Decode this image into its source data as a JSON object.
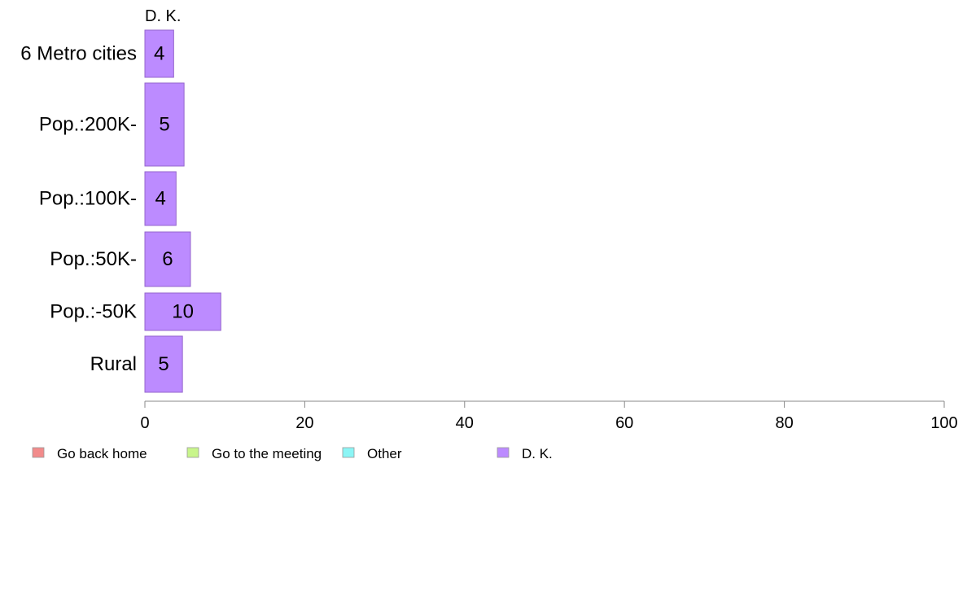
{
  "chart_data": {
    "type": "bar",
    "orientation": "horizontal",
    "series_label": "D. K.",
    "categories": [
      "6 Metro cities",
      "Pop.:200K-",
      "Pop.:100K-",
      "Pop.:50K-",
      "Pop.:-50K",
      "Rural"
    ],
    "values": [
      3.6,
      4.9,
      3.9,
      5.7,
      9.5,
      4.7
    ],
    "value_labels": [
      "4",
      "5",
      "4",
      "6",
      "10",
      "5"
    ],
    "xlim": [
      0,
      100
    ],
    "xticks": [
      "0",
      "20",
      "40",
      "60",
      "80",
      "100"
    ],
    "legend": [
      {
        "label": "Go back home",
        "color": "#f28b8b"
      },
      {
        "label": "Go to the meeting",
        "color": "#c8f58b"
      },
      {
        "label": "Other",
        "color": "#8bf5f5"
      },
      {
        "label": "D. K.",
        "color": "#bc8bff"
      }
    ],
    "legend_position": "bottom",
    "grid": false,
    "colors": {
      "bar_fill": "#bc8bff",
      "bar_stroke": "#9466cc",
      "axis": "#888888"
    }
  }
}
